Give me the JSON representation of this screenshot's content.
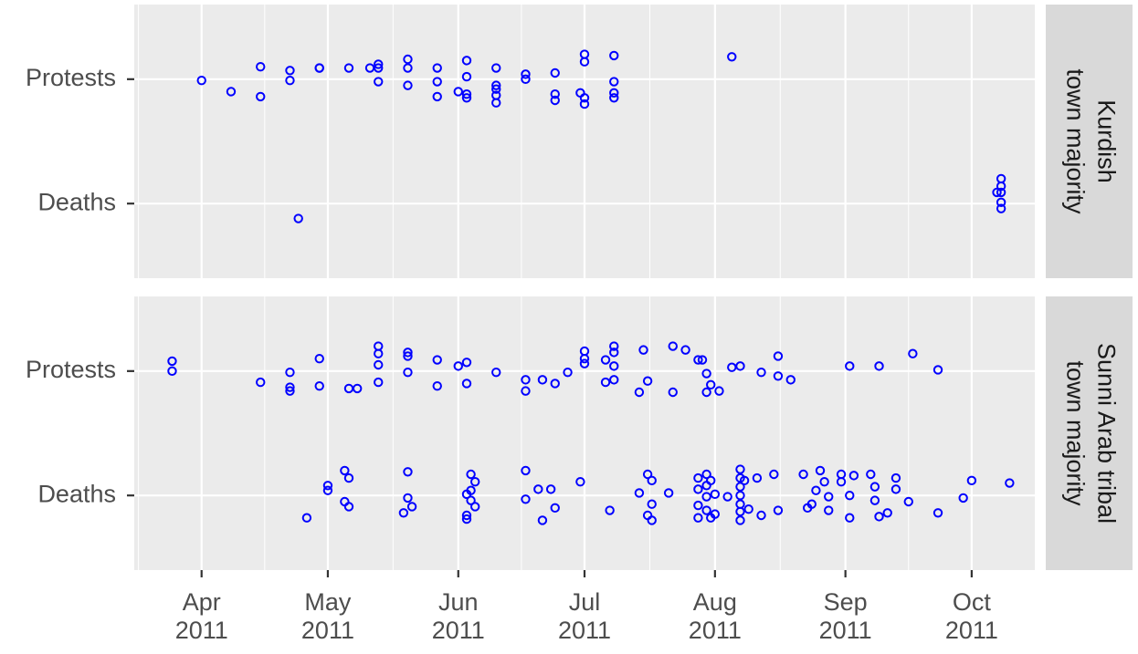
{
  "chart_data": {
    "type": "scatter",
    "color": "#0000ff",
    "grid": true,
    "xlim": [
      "2011-03-16",
      "2011-10-16"
    ],
    "xticks": [
      {
        "value": "2011-04-01",
        "label": [
          "Apr",
          "2011"
        ]
      },
      {
        "value": "2011-05-01",
        "label": [
          "May",
          "2011"
        ]
      },
      {
        "value": "2011-06-01",
        "label": [
          "Jun",
          "2011"
        ]
      },
      {
        "value": "2011-07-01",
        "label": [
          "Jul",
          "2011"
        ]
      },
      {
        "value": "2011-08-01",
        "label": [
          "Aug",
          "2011"
        ]
      },
      {
        "value": "2011-09-01",
        "label": [
          "Sep",
          "2011"
        ]
      },
      {
        "value": "2011-10-01",
        "label": [
          "Oct",
          "2011"
        ]
      }
    ],
    "ylim": [
      0.4,
      2.6
    ],
    "yticks": [
      {
        "value": 1,
        "label": "Deaths"
      },
      {
        "value": 2,
        "label": "Protests"
      }
    ],
    "panels": [
      {
        "label": [
          "Kurdish",
          "town majority"
        ],
        "x": [
          "2011-04-01",
          "2011-04-08",
          "2011-04-15",
          "2011-04-15",
          "2011-04-22",
          "2011-04-22",
          "2011-04-24",
          "2011-04-29",
          "2011-04-29",
          "2011-05-06",
          "2011-05-11",
          "2011-05-13",
          "2011-05-13",
          "2011-05-13",
          "2011-05-20",
          "2011-05-20",
          "2011-05-20",
          "2011-05-27",
          "2011-05-27",
          "2011-05-27",
          "2011-06-01",
          "2011-06-03",
          "2011-06-03",
          "2011-06-03",
          "2011-06-03",
          "2011-06-10",
          "2011-06-10",
          "2011-06-10",
          "2011-06-10",
          "2011-06-10",
          "2011-06-17",
          "2011-06-17",
          "2011-06-24",
          "2011-06-24",
          "2011-06-24",
          "2011-06-30",
          "2011-07-01",
          "2011-07-01",
          "2011-07-01",
          "2011-07-01",
          "2011-07-08",
          "2011-07-08",
          "2011-07-08",
          "2011-07-08",
          "2011-08-05",
          "2011-10-08",
          "2011-10-08",
          "2011-10-07",
          "2011-10-08",
          "2011-10-08",
          "2011-10-08"
        ],
        "y": [
          1.99,
          1.9,
          2.1,
          1.86,
          2.07,
          1.99,
          0.88,
          2.09,
          2.09,
          2.09,
          2.09,
          2.09,
          2.12,
          1.98,
          2.16,
          2.09,
          1.95,
          2.09,
          1.98,
          1.86,
          1.9,
          2.15,
          2.02,
          1.88,
          1.85,
          2.09,
          1.95,
          1.92,
          1.87,
          1.81,
          2.04,
          2.0,
          2.05,
          1.88,
          1.83,
          1.89,
          2.2,
          2.14,
          1.85,
          1.8,
          2.19,
          1.98,
          1.89,
          1.85,
          2.18,
          1.2,
          1.14,
          1.09,
          1.09,
          1.01,
          0.96
        ]
      },
      {
        "label": [
          "Sunni Arab tribal",
          "town majority"
        ],
        "x": [
          "2011-03-25",
          "2011-03-25",
          "2011-04-15",
          "2011-04-22",
          "2011-04-22",
          "2011-04-22",
          "2011-04-29",
          "2011-04-29",
          "2011-05-06",
          "2011-05-08",
          "2011-05-13",
          "2011-05-13",
          "2011-05-13",
          "2011-05-13",
          "2011-05-20",
          "2011-05-20",
          "2011-05-20",
          "2011-05-27",
          "2011-05-27",
          "2011-06-01",
          "2011-06-03",
          "2011-06-03",
          "2011-06-10",
          "2011-06-17",
          "2011-06-17",
          "2011-06-21",
          "2011-06-24",
          "2011-06-27",
          "2011-07-01",
          "2011-07-01",
          "2011-07-01",
          "2011-07-06",
          "2011-07-08",
          "2011-07-08",
          "2011-07-06",
          "2011-07-08",
          "2011-07-08",
          "2011-07-14",
          "2011-07-15",
          "2011-07-16",
          "2011-07-22",
          "2011-07-22",
          "2011-07-25",
          "2011-07-28",
          "2011-07-29",
          "2011-07-30",
          "2011-07-30",
          "2011-07-31",
          "2011-08-02",
          "2011-08-05",
          "2011-08-07",
          "2011-08-12",
          "2011-08-16",
          "2011-08-16",
          "2011-08-19",
          "2011-09-02",
          "2011-09-09",
          "2011-09-17",
          "2011-09-23",
          "2011-04-26",
          "2011-05-01",
          "2011-05-01",
          "2011-05-05",
          "2011-05-06",
          "2011-05-05",
          "2011-05-06",
          "2011-05-20",
          "2011-05-20",
          "2011-05-19",
          "2011-05-21",
          "2011-06-03",
          "2011-06-03",
          "2011-06-03",
          "2011-06-04",
          "2011-06-05",
          "2011-06-04",
          "2011-06-04",
          "2011-06-05",
          "2011-06-17",
          "2011-06-17",
          "2011-06-20",
          "2011-06-21",
          "2011-06-23",
          "2011-06-24",
          "2011-06-30",
          "2011-07-07",
          "2011-07-14",
          "2011-07-16",
          "2011-07-17",
          "2011-07-17",
          "2011-07-16",
          "2011-07-17",
          "2011-07-21",
          "2011-07-28",
          "2011-07-28",
          "2011-07-28",
          "2011-07-28",
          "2011-07-30",
          "2011-07-30",
          "2011-07-30",
          "2011-07-30",
          "2011-07-31",
          "2011-07-31",
          "2011-08-01",
          "2011-08-01",
          "2011-08-04",
          "2011-08-07",
          "2011-08-07",
          "2011-08-07",
          "2011-08-07",
          "2011-08-07",
          "2011-08-07",
          "2011-08-07",
          "2011-08-08",
          "2011-08-09",
          "2011-08-11",
          "2011-08-12",
          "2011-08-15",
          "2011-08-16",
          "2011-08-22",
          "2011-08-23",
          "2011-08-24",
          "2011-08-25",
          "2011-08-26",
          "2011-08-27",
          "2011-08-28",
          "2011-08-28",
          "2011-08-31",
          "2011-08-31",
          "2011-09-02",
          "2011-09-02",
          "2011-09-03",
          "2011-09-07",
          "2011-09-08",
          "2011-09-08",
          "2011-09-09",
          "2011-09-11",
          "2011-09-13",
          "2011-09-13",
          "2011-09-16",
          "2011-09-23",
          "2011-09-29",
          "2011-10-01",
          "2011-10-10"
        ],
        "y": [
          2.08,
          2.0,
          1.91,
          1.99,
          1.87,
          1.84,
          2.1,
          1.88,
          1.86,
          1.86,
          2.2,
          2.14,
          2.05,
          1.91,
          2.15,
          2.12,
          1.99,
          2.09,
          1.88,
          2.04,
          2.07,
          1.9,
          1.99,
          1.93,
          1.84,
          1.93,
          1.9,
          1.99,
          2.16,
          2.1,
          2.06,
          2.09,
          2.2,
          2.15,
          1.91,
          1.93,
          2.04,
          1.83,
          2.17,
          1.92,
          2.2,
          1.83,
          2.17,
          2.09,
          2.09,
          1.98,
          1.83,
          1.89,
          1.84,
          2.03,
          2.04,
          1.99,
          2.12,
          1.96,
          1.93,
          2.04,
          2.04,
          2.14,
          2.01,
          0.82,
          1.08,
          1.04,
          1.2,
          1.14,
          0.95,
          0.91,
          1.19,
          0.98,
          0.86,
          0.91,
          1.01,
          0.84,
          0.81,
          1.17,
          1.11,
          1.04,
          0.96,
          0.91,
          1.2,
          0.97,
          1.05,
          0.8,
          1.05,
          0.9,
          1.11,
          0.88,
          1.02,
          1.17,
          1.12,
          0.93,
          0.84,
          0.8,
          1.02,
          1.14,
          1.05,
          0.92,
          0.82,
          1.17,
          1.08,
          0.99,
          0.88,
          1.12,
          0.82,
          1.01,
          0.85,
          0.99,
          1.21,
          1.14,
          1.07,
          1.0,
          0.93,
          0.87,
          0.8,
          1.12,
          0.89,
          1.14,
          0.84,
          1.17,
          0.88,
          1.17,
          0.9,
          0.93,
          1.04,
          1.2,
          1.11,
          0.99,
          0.88,
          1.11,
          1.17,
          1.0,
          0.82,
          1.16,
          1.17,
          1.07,
          0.96,
          0.83,
          0.86,
          1.14,
          1.05,
          0.95,
          0.86,
          0.98,
          1.12,
          1.1
        ]
      }
    ]
  }
}
